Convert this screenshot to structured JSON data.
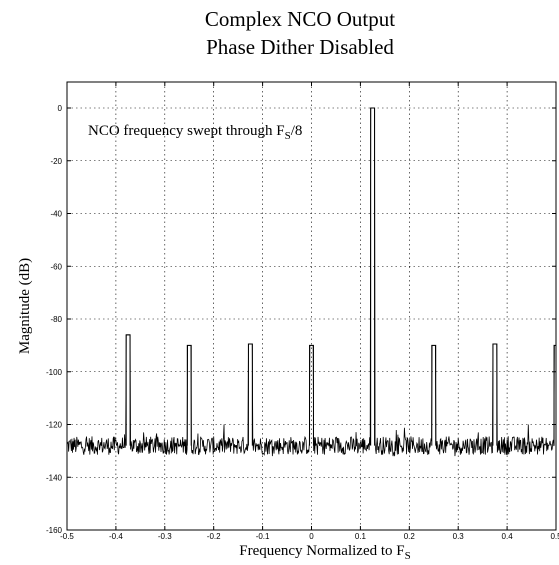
{
  "chart_data": {
    "type": "line",
    "title_line1": "Complex NCO Output",
    "title_line2": "Phase Dither Disabled",
    "xlabel": "Frequency Normalized to F",
    "xlabel_sub": "S",
    "ylabel": "Magnitude (dB)",
    "annotation": "NCO frequency swept through F",
    "annotation_sub": "S",
    "annotation_suffix": "/8",
    "xlim": [
      -0.5,
      0.5
    ],
    "ylim": [
      -160,
      5
    ],
    "xticks": [
      -0.5,
      -0.4,
      -0.3,
      -0.2,
      -0.1,
      0,
      0.1,
      0.2,
      0.3,
      0.4,
      0.5
    ],
    "xtick_labels": [
      "-0.5",
      "-0.4",
      "-0.3",
      "-0.2",
      "-0.1",
      "0",
      "0.1",
      "0.2",
      "0.3",
      "0.4",
      "0.5"
    ],
    "yticks": [
      0,
      -20,
      -40,
      -60,
      -80,
      -100,
      -120,
      -140,
      -160
    ],
    "ytick_labels": [
      "0",
      "-20",
      "-40",
      "-60",
      "-80",
      "-100",
      "-120",
      "-140",
      "-160"
    ],
    "grid": true,
    "noise_floor": {
      "mean_db": -128,
      "range_db": [
        -132,
        -120
      ]
    },
    "series": [
      {
        "peaks": [
          {
            "x": -0.375,
            "y": -86
          },
          {
            "x": -0.25,
            "y": -90
          },
          {
            "x": -0.125,
            "y": -89.5
          },
          {
            "x": 0.0,
            "y": -90
          },
          {
            "x": 0.125,
            "y": 0
          },
          {
            "x": 0.25,
            "y": -90
          },
          {
            "x": 0.375,
            "y": -89.5
          },
          {
            "x": 0.5,
            "y": -90
          }
        ]
      }
    ]
  }
}
